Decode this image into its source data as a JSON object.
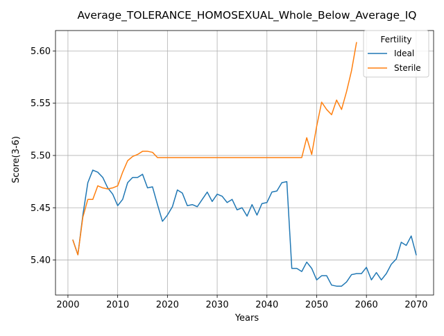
{
  "chart_data": {
    "type": "line",
    "title": "Average_TOLERANCE_HOMOSEXUAL_Whole_Below_Average_IQ",
    "xlabel": "Years",
    "ylabel": "Score(3-6)",
    "xlim": [
      1997.5,
      2073.5
    ],
    "ylim": [
      5.3665,
      5.6195
    ],
    "xticks": [
      2000,
      2010,
      2020,
      2030,
      2040,
      2050,
      2060,
      2070
    ],
    "xtick_labels": [
      "2000",
      "2010",
      "2020",
      "2030",
      "2040",
      "2050",
      "2060",
      "2070"
    ],
    "yticks": [
      5.4,
      5.45,
      5.5,
      5.55,
      5.6
    ],
    "ytick_labels": [
      "5.40",
      "5.45",
      "5.50",
      "5.55",
      "5.60"
    ],
    "grid": true,
    "legend": {
      "title": "Fertility",
      "placement": "top-right"
    },
    "series": [
      {
        "name": "Ideal",
        "color": "#1f77b4",
        "x": [
          2001,
          2002,
          2003,
          2004,
          2005,
          2006,
          2007,
          2008,
          2009,
          2010,
          2011,
          2012,
          2013,
          2014,
          2015,
          2016,
          2017,
          2018,
          2019,
          2020,
          2021,
          2022,
          2023,
          2024,
          2025,
          2026,
          2027,
          2028,
          2029,
          2030,
          2031,
          2032,
          2033,
          2034,
          2035,
          2036,
          2037,
          2038,
          2039,
          2040,
          2041,
          2042,
          2043,
          2044,
          2045,
          2046,
          2047,
          2048,
          2049,
          2050,
          2051,
          2052,
          2053,
          2054,
          2055,
          2056,
          2057,
          2058,
          2059,
          2060,
          2061,
          2062,
          2063,
          2064,
          2065,
          2066,
          2067,
          2068,
          2069,
          2070
        ],
        "values": [
          5.419,
          5.405,
          5.443,
          5.474,
          5.486,
          5.484,
          5.479,
          5.469,
          5.463,
          5.452,
          5.458,
          5.474,
          5.479,
          5.479,
          5.482,
          5.469,
          5.47,
          5.453,
          5.437,
          5.443,
          5.451,
          5.467,
          5.464,
          5.452,
          5.453,
          5.451,
          5.458,
          5.465,
          5.456,
          5.463,
          5.461,
          5.455,
          5.458,
          5.448,
          5.45,
          5.442,
          5.453,
          5.443,
          5.454,
          5.455,
          5.465,
          5.466,
          5.474,
          5.475,
          5.392,
          5.392,
          5.389,
          5.398,
          5.392,
          5.381,
          5.385,
          5.385,
          5.376,
          5.375,
          5.375,
          5.379,
          5.386,
          5.387,
          5.387,
          5.393,
          5.381,
          5.388,
          5.381,
          5.387,
          5.396,
          5.401,
          5.417,
          5.414,
          5.423,
          5.405
        ]
      },
      {
        "name": "Sterile",
        "color": "#ff7f0e",
        "x": [
          2001,
          2002,
          2003,
          2004,
          2005,
          2006,
          2007,
          2008,
          2009,
          2010,
          2011,
          2012,
          2013,
          2014,
          2015,
          2016,
          2017,
          2018,
          2019,
          2020,
          2021,
          2022,
          2023,
          2024,
          2025,
          2026,
          2027,
          2028,
          2029,
          2030,
          2031,
          2032,
          2033,
          2034,
          2035,
          2036,
          2037,
          2038,
          2039,
          2040,
          2041,
          2042,
          2043,
          2044,
          2045,
          2046,
          2047,
          2048,
          2049,
          2050,
          2051,
          2052,
          2053,
          2054,
          2055,
          2056,
          2057,
          2058
        ],
        "values": [
          5.419,
          5.405,
          5.441,
          5.458,
          5.458,
          5.471,
          5.469,
          5.468,
          5.469,
          5.471,
          5.484,
          5.495,
          5.499,
          5.501,
          5.504,
          5.504,
          5.503,
          5.498,
          5.498,
          5.498,
          5.498,
          5.498,
          5.498,
          5.498,
          5.498,
          5.498,
          5.498,
          5.498,
          5.498,
          5.498,
          5.498,
          5.498,
          5.498,
          5.498,
          5.498,
          5.498,
          5.498,
          5.498,
          5.498,
          5.498,
          5.498,
          5.498,
          5.498,
          5.498,
          5.498,
          5.498,
          5.498,
          5.517,
          5.501,
          5.528,
          5.551,
          5.544,
          5.539,
          5.553,
          5.544,
          5.561,
          5.581,
          5.608
        ]
      }
    ]
  }
}
